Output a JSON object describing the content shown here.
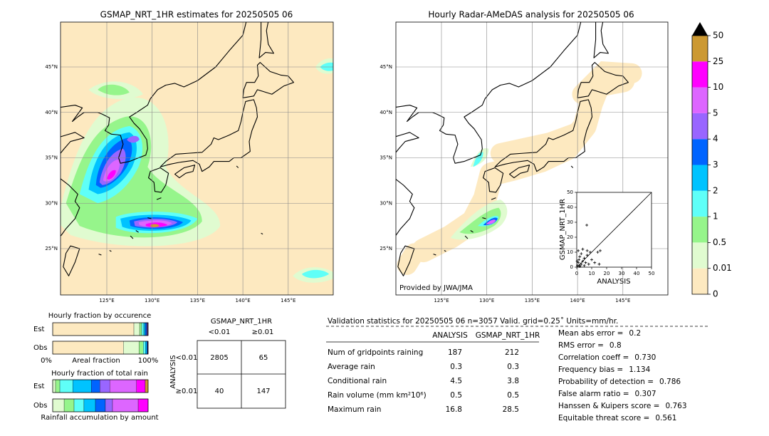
{
  "left_map": {
    "title": "GSMAP_NRT_1HR estimates for 20250505 06",
    "lat_ticks": [
      {
        "value": 45,
        "label": "45°N"
      },
      {
        "value": 40,
        "label": "40°N"
      },
      {
        "value": 35,
        "label": "35°N"
      },
      {
        "value": 30,
        "label": "30°N"
      },
      {
        "value": 25,
        "label": "25°N"
      }
    ],
    "lon_ticks": [
      {
        "value": 125,
        "label": "125°E"
      },
      {
        "value": 130,
        "label": "130°E"
      },
      {
        "value": 135,
        "label": "135°E"
      },
      {
        "value": 140,
        "label": "140°E"
      },
      {
        "value": 145,
        "label": "145°E"
      }
    ]
  },
  "right_map": {
    "title": "Hourly Radar-AMeDAS analysis for 20250505 06",
    "credit": "Provided by JWA/JMA",
    "lat_ticks": [
      {
        "value": 45,
        "label": "45°N"
      },
      {
        "value": 40,
        "label": "40°N"
      },
      {
        "value": 35,
        "label": "35°N"
      },
      {
        "value": 30,
        "label": "30°N"
      },
      {
        "value": 25,
        "label": "25°N"
      }
    ],
    "lon_ticks": [
      {
        "value": 125,
        "label": "125°E"
      },
      {
        "value": 130,
        "label": "130°E"
      },
      {
        "value": 135,
        "label": "135°E"
      },
      {
        "value": 140,
        "label": "140°E"
      },
      {
        "value": 145,
        "label": "145°E"
      }
    ]
  },
  "colorbar": {
    "levels": [
      0,
      0.01,
      0.5,
      1,
      2,
      3,
      4,
      5,
      10,
      25,
      50
    ],
    "colors": [
      "#fde9c0",
      "#e0fbd0",
      "#96f58b",
      "#5ffff8",
      "#00c3ff",
      "#0064ff",
      "#9966ff",
      "#dd66ff",
      "#ff00ff",
      "#cc9933"
    ],
    "extend_color": "#000000"
  },
  "scatter": {
    "type": "scatter",
    "xlabel": "ANALYSIS",
    "ylabel": "GSMAP_NRT_1HR",
    "x": [
      0.5,
      1,
      2,
      1.5,
      3,
      2,
      4,
      5,
      3,
      6,
      7,
      8,
      1,
      4,
      10,
      12,
      15,
      9,
      6.7,
      7,
      14,
      15.7,
      2,
      0.3,
      5
    ],
    "y": [
      1,
      3,
      1,
      5,
      2,
      7,
      4,
      1,
      9,
      3,
      8,
      2,
      11,
      12,
      5,
      3,
      2,
      10,
      28.1,
      11,
      10,
      11,
      0.5,
      4,
      6
    ],
    "xlim": [
      0,
      50
    ],
    "ylim": [
      0,
      50
    ],
    "xticks": [
      0,
      10,
      20,
      30,
      40,
      50
    ],
    "yticks": [
      0,
      10,
      20,
      30,
      40,
      50
    ]
  },
  "occurrence": {
    "title": "Hourly fraction by occurence",
    "xlabel": "Areal fraction",
    "left_label": "0%",
    "right_label": "100%",
    "rows": [
      {
        "name": "Est",
        "values": [
          85.1,
          6.0,
          2.2,
          2.2,
          1.5,
          1.5,
          0.7,
          0.4,
          0.3,
          0.1
        ]
      },
      {
        "name": "Obs",
        "values": [
          74,
          16.4,
          4.5,
          2.2,
          1.5,
          0.8,
          0.3,
          0.2,
          0.1,
          0
        ]
      }
    ]
  },
  "total_rain": {
    "title": "Hourly fraction of total rain",
    "xlabel": "Rainfall accumulation by amount",
    "rows": [
      {
        "name": "Est",
        "values": [
          0,
          3,
          4.5,
          13.5,
          19.4,
          9,
          10.4,
          28,
          9.2,
          3
        ]
      },
      {
        "name": "Obs",
        "values": [
          0,
          12,
          10.4,
          10.4,
          12,
          10.4,
          7.5,
          26.9,
          10.4,
          0
        ]
      }
    ]
  },
  "contingency": {
    "title": "GSMAP_NRT_1HR",
    "col_labels": [
      "<0.01",
      "≥0.01"
    ],
    "row_title": "ANALYSIS",
    "row_labels": [
      "<0.01",
      "≥0.01"
    ],
    "cells": [
      [
        2805,
        65
      ],
      [
        40,
        147
      ]
    ]
  },
  "validation": {
    "header": "Validation statistics for 20250505 06  n=3057 Valid. grid=0.25˚ Units=mm/hr.",
    "columns": [
      "ANALYSIS",
      "GSMAP_NRT_1HR"
    ],
    "rows": [
      {
        "label": "Num of gridpoints raining",
        "values": [
          "187",
          "212"
        ]
      },
      {
        "label": "Average rain",
        "values": [
          "0.3",
          "0.3"
        ]
      },
      {
        "label": "Conditional rain",
        "values": [
          "4.5",
          "3.8"
        ]
      },
      {
        "label": "Rain volume (mm km²10⁶)",
        "values": [
          "0.5",
          "0.5"
        ]
      },
      {
        "label": "Maximum rain",
        "values": [
          "16.8",
          "28.5"
        ]
      }
    ],
    "scores": [
      {
        "label": "Mean abs error =",
        "value": "0.2"
      },
      {
        "label": "RMS error =",
        "value": "0.8"
      },
      {
        "label": "Correlation coeff =",
        "value": "0.730"
      },
      {
        "label": "Frequency bias =",
        "value": "1.134"
      },
      {
        "label": "Probability of detection =",
        "value": "0.786"
      },
      {
        "label": "False alarm ratio =",
        "value": "0.307"
      },
      {
        "label": "Hanssen & Kuipers score =",
        "value": "0.763"
      },
      {
        "label": "Equitable threat score =",
        "value": "0.561"
      }
    ]
  }
}
